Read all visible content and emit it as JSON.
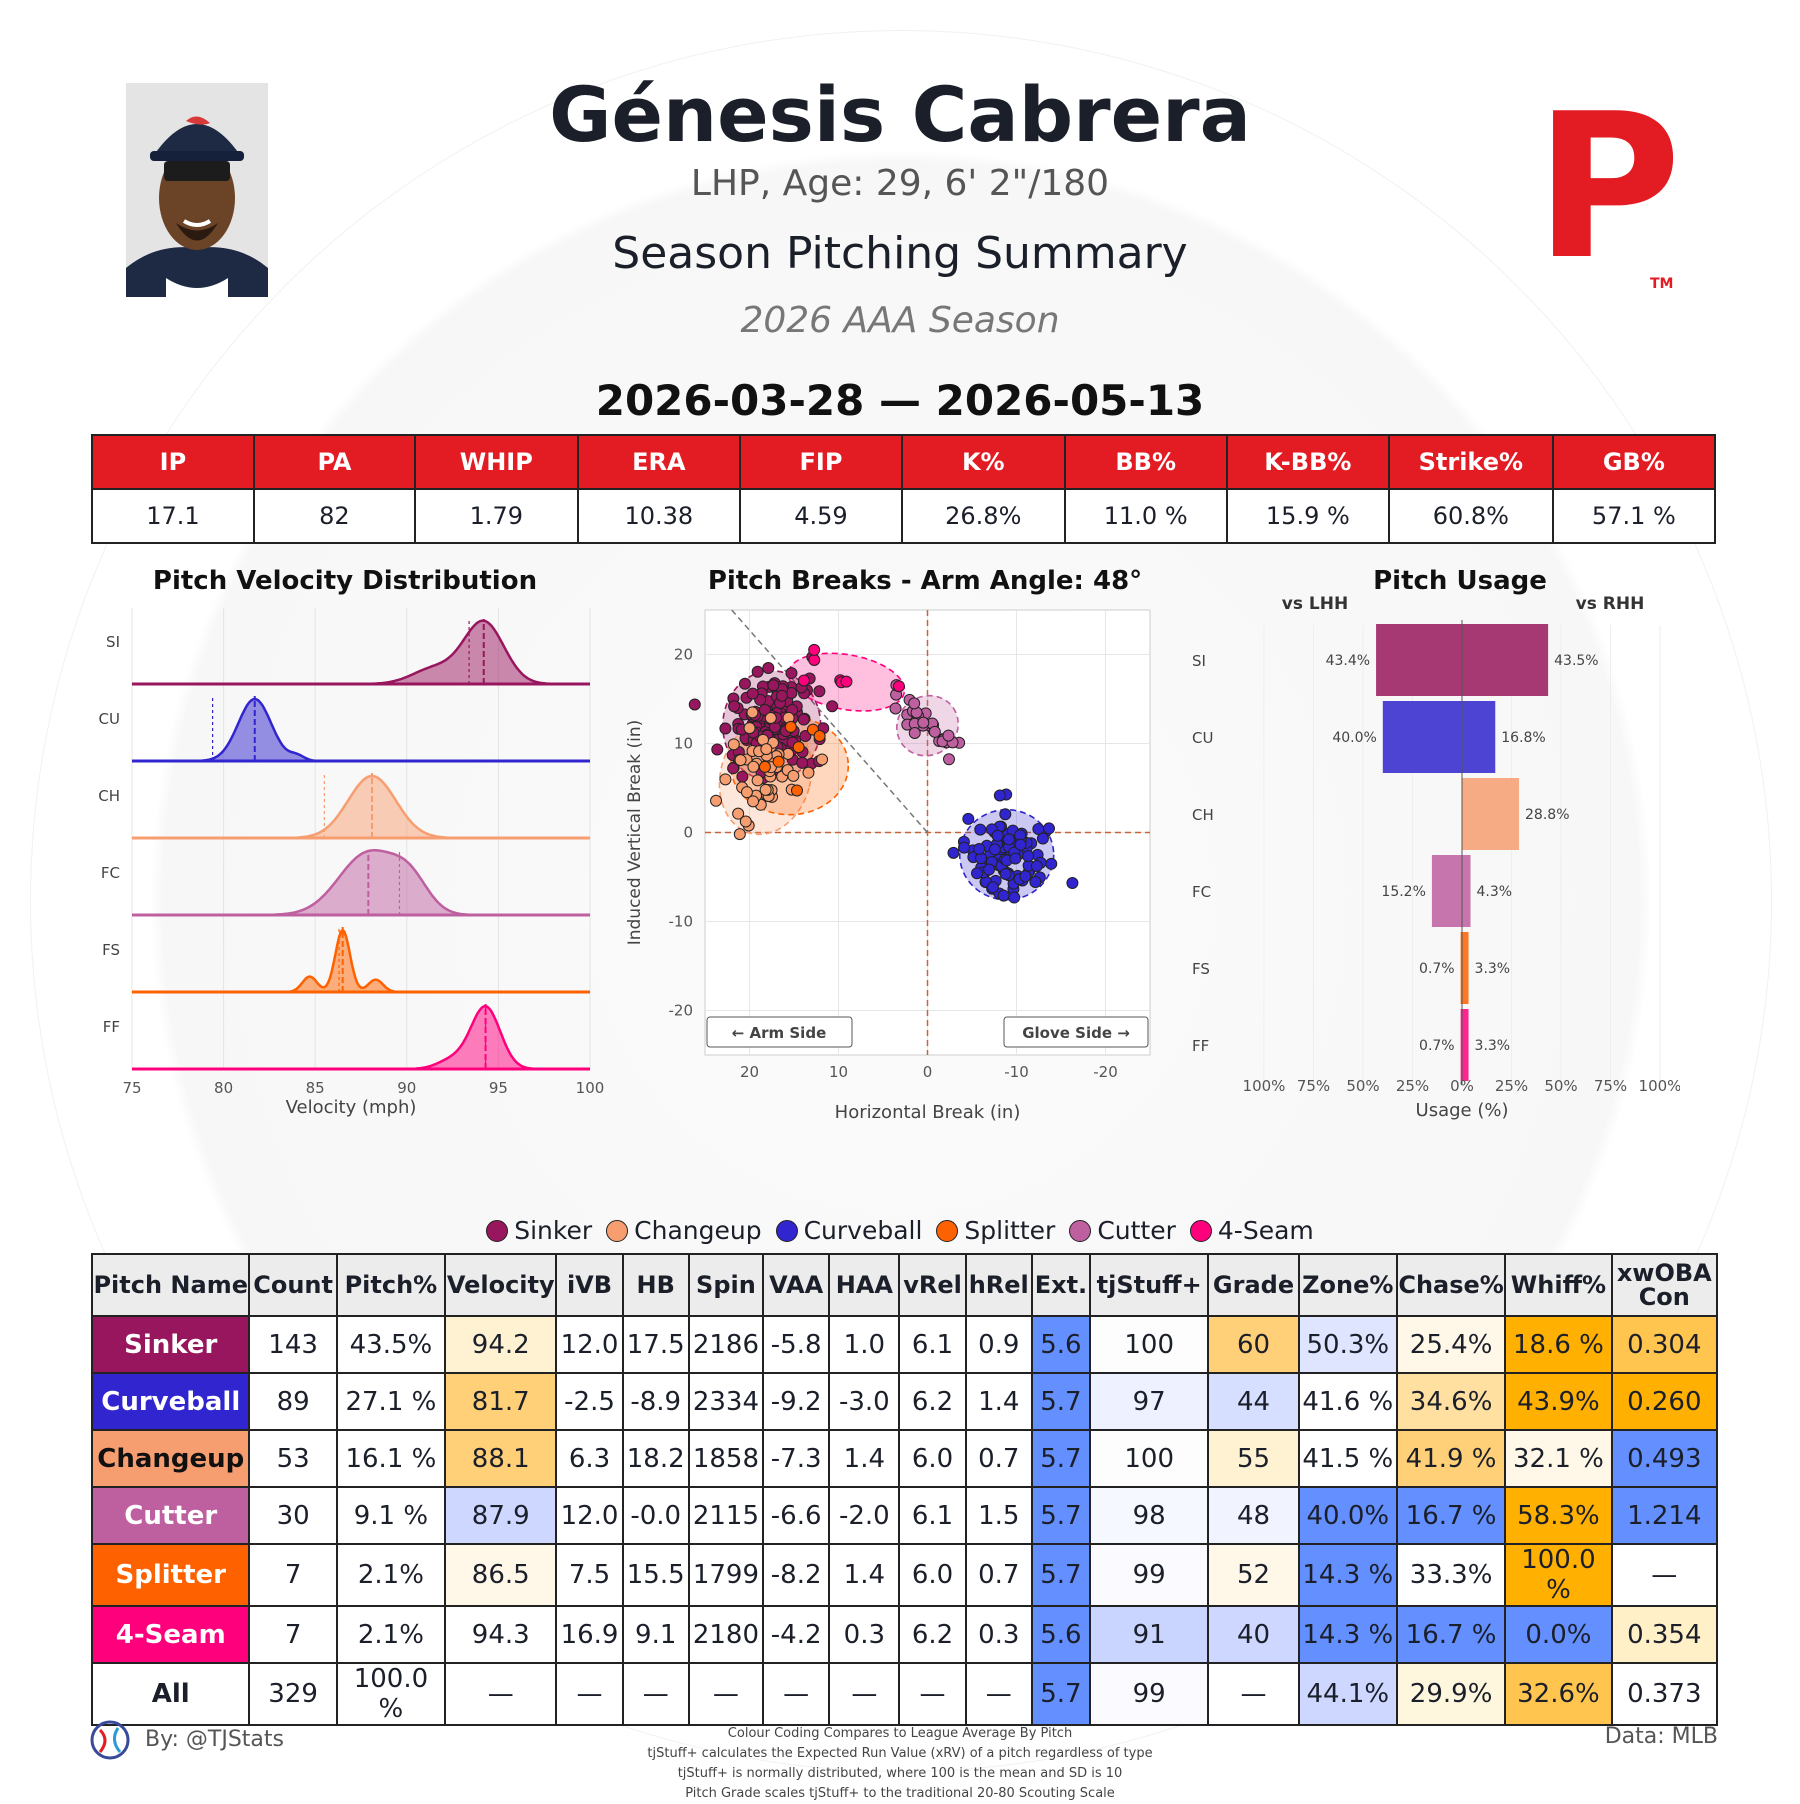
{
  "header": {
    "player_name": "Génesis Cabrera",
    "bio": "LHP, Age: 29, 6' 2\"/180",
    "report_title": "Season Pitching Summary",
    "season_label": "2026 AAA Season",
    "date_range": "2026-03-28 — 2026-05-13",
    "logo_letter": "P",
    "logo_tm": "TM"
  },
  "summary_stats": {
    "labels": [
      "IP",
      "PA",
      "WHIP",
      "ERA",
      "FIP",
      "K%",
      "BB%",
      "K-BB%",
      "Strike%",
      "GB%"
    ],
    "values": [
      "17.1",
      "82",
      "1.79",
      "10.38",
      "4.59",
      "26.8%",
      "11.0 %",
      "15.9 %",
      "60.8%",
      "57.1 %"
    ]
  },
  "colors": {
    "Sinker": "#98165d",
    "Changeup": "#f79e70",
    "Curveball": "#3025ce",
    "Splitter": "#fe6100",
    "Cutter": "#be5fa0",
    "4-Seam": "#ff007d",
    "accent_red": "#e31b23"
  },
  "chart_data": [
    {
      "type": "area",
      "title": "Pitch Velocity Distribution",
      "xlabel": "Velocity (mph)",
      "xlim": [
        75,
        100
      ],
      "xticks": [
        "75",
        "80",
        "85",
        "90",
        "95",
        "100"
      ],
      "series": [
        {
          "name": "SI",
          "pitch": "Sinker",
          "peak": 94.2,
          "league_avg": 93.4
        },
        {
          "name": "CU",
          "pitch": "Curveball",
          "peak": 81.7,
          "league_avg": 79.4
        },
        {
          "name": "CH",
          "pitch": "Changeup",
          "peak": 88.1,
          "league_avg": 85.5
        },
        {
          "name": "FC",
          "pitch": "Cutter",
          "peak": 87.9,
          "league_avg": 89.6
        },
        {
          "name": "FS",
          "pitch": "Splitter",
          "peak": 86.5,
          "league_avg": 86.3
        },
        {
          "name": "FF",
          "pitch": "4-Seam",
          "peak": 94.3,
          "league_avg": 94.3
        }
      ]
    },
    {
      "type": "scatter",
      "title": "Pitch Breaks - Arm Angle: 48°",
      "xlabel": "Horizontal Break (in)",
      "ylabel": "Induced Vertical Break (in)",
      "xlim": [
        25,
        -25
      ],
      "ylim": [
        -25,
        25
      ],
      "xticks": [
        "20",
        "10",
        "0",
        "-10",
        "-20"
      ],
      "yticks": [
        "20",
        "10",
        "0",
        "-10",
        "-20"
      ],
      "arm_side_label": "← Arm Side",
      "glove_side_label": "Glove Side →",
      "clusters": [
        {
          "pitch": "Sinker",
          "cx": 17.5,
          "cy": 12.0,
          "sx": 2.5,
          "sy": 2.8,
          "n": 143
        },
        {
          "pitch": "Curveball",
          "cx": -8.9,
          "cy": -2.5,
          "sx": 2.4,
          "sy": 2.3,
          "n": 89
        },
        {
          "pitch": "Changeup",
          "cx": 18.2,
          "cy": 6.3,
          "sx": 2.3,
          "sy": 3.0,
          "n": 53
        },
        {
          "pitch": "Cutter",
          "cx": 0.0,
          "cy": 12.0,
          "sx": 1.6,
          "sy": 1.5,
          "n": 30
        },
        {
          "pitch": "Splitter",
          "cx": 15.5,
          "cy": 7.5,
          "sx": 3.0,
          "sy": 2.5,
          "n": 7
        },
        {
          "pitch": "4-Seam",
          "cx": 9.1,
          "cy": 16.9,
          "sx": 3.0,
          "sy": 1.4,
          "n": 7
        }
      ]
    },
    {
      "type": "bar",
      "title": "Pitch Usage",
      "xlabel": "Usage (%)",
      "left_label": "vs LHH",
      "right_label": "vs RHH",
      "categories": [
        "SI",
        "CU",
        "CH",
        "FC",
        "FS",
        "FF"
      ],
      "pitches": [
        "Sinker",
        "Curveball",
        "Changeup",
        "Cutter",
        "Splitter",
        "4-Seam"
      ],
      "series": [
        {
          "name": "vs LHH",
          "values": [
            43.4,
            40.0,
            0.0,
            15.2,
            0.7,
            0.7
          ]
        },
        {
          "name": "vs RHH",
          "values": [
            43.5,
            16.8,
            28.8,
            4.3,
            3.3,
            3.3
          ]
        }
      ],
      "xticks": [
        "100%",
        "75%",
        "50%",
        "25%",
        "0%",
        "25%",
        "50%",
        "75%",
        "100%"
      ]
    }
  ],
  "legend": [
    "Sinker",
    "Changeup",
    "Curveball",
    "Splitter",
    "Cutter",
    "4-Seam"
  ],
  "pitch_table": {
    "headers": [
      "Pitch Name",
      "Count",
      "Pitch%",
      "Velocity",
      "iVB",
      "HB",
      "Spin",
      "VAA",
      "HAA",
      "vRel",
      "hRel",
      "Ext.",
      "tjStuff+",
      "Grade",
      "Zone%",
      "Chase%",
      "Whiff%",
      "xwOBA Con"
    ],
    "rows": [
      {
        "name": "Sinker",
        "cells": [
          "143",
          "43.5%",
          "94.2",
          "12.0",
          "17.5",
          "2186",
          "-5.8",
          "1.0",
          "6.1",
          "0.9",
          "5.6",
          "100",
          "60",
          "50.3%",
          "25.4%",
          "18.6 %",
          "0.304"
        ]
      },
      {
        "name": "Curveball",
        "cells": [
          "89",
          "27.1 %",
          "81.7",
          "-2.5",
          "-8.9",
          "2334",
          "-9.2",
          "-3.0",
          "6.2",
          "1.4",
          "5.7",
          "97",
          "44",
          "41.6 %",
          "34.6%",
          "43.9%",
          "0.260"
        ]
      },
      {
        "name": "Changeup",
        "cells": [
          "53",
          "16.1 %",
          "88.1",
          "6.3",
          "18.2",
          "1858",
          "-7.3",
          "1.4",
          "6.0",
          "0.7",
          "5.7",
          "100",
          "55",
          "41.5 %",
          "41.9 %",
          "32.1 %",
          "0.493"
        ]
      },
      {
        "name": "Cutter",
        "cells": [
          "30",
          "9.1 %",
          "87.9",
          "12.0",
          "-0.0",
          "2115",
          "-6.6",
          "-2.0",
          "6.1",
          "1.5",
          "5.7",
          "98",
          "48",
          "40.0%",
          "16.7 %",
          "58.3%",
          "1.214"
        ]
      },
      {
        "name": "Splitter",
        "cells": [
          "7",
          "2.1%",
          "86.5",
          "7.5",
          "15.5",
          "1799",
          "-8.2",
          "1.4",
          "6.0",
          "0.7",
          "5.7",
          "99",
          "52",
          "14.3 %",
          "33.3%",
          "100.0 %",
          "—"
        ]
      },
      {
        "name": "4-Seam",
        "cells": [
          "7",
          "2.1%",
          "94.3",
          "16.9",
          "9.1",
          "2180",
          "-4.2",
          "0.3",
          "6.2",
          "0.3",
          "5.6",
          "91",
          "40",
          "14.3 %",
          "16.7 %",
          "0.0%",
          "0.354"
        ]
      },
      {
        "name": "All",
        "cells": [
          "329",
          "100.0 %",
          "—",
          "—",
          "—",
          "—",
          "—",
          "—",
          "—",
          "—",
          "5.7",
          "99",
          "—",
          "44.1%",
          "29.9%",
          "32.6%",
          "0.373"
        ]
      }
    ],
    "cell_colors": [
      [
        "#fff",
        "#fff",
        "#fff2d3",
        "#fff",
        "#fff",
        "#fff",
        "#fff",
        "#fff",
        "#fff",
        "#fff",
        "#648fff",
        "#fdfdfd",
        "#ffd078",
        "#dfe4ff",
        "#fff8e8",
        "#ffb000",
        "#ffc54f"
      ],
      [
        "#fff",
        "#fff",
        "#ffd078",
        "#fff",
        "#fff",
        "#fff",
        "#fff",
        "#fff",
        "#fff",
        "#fff",
        "#648fff",
        "#eef1ff",
        "#d6dfff",
        "#fff",
        "#ffe0a0",
        "#ffb000",
        "#ffb000"
      ],
      [
        "#fff",
        "#fff",
        "#ffd078",
        "#fff",
        "#fff",
        "#fff",
        "#fff",
        "#fff",
        "#fff",
        "#fff",
        "#648fff",
        "#fdfdfd",
        "#fff2d3",
        "#fff",
        "#ffd078",
        "#fff8e8",
        "#648fff"
      ],
      [
        "#fff",
        "#fff",
        "#cdd7ff",
        "#fff",
        "#fff",
        "#fff",
        "#fff",
        "#fff",
        "#fff",
        "#fff",
        "#648fff",
        "#f6f8ff",
        "#f1f4ff",
        "#648fff",
        "#648fff",
        "#ffb000",
        "#648fff"
      ],
      [
        "#fff",
        "#fff",
        "#fff8e8",
        "#fff",
        "#fff",
        "#fff",
        "#fff",
        "#fff",
        "#fff",
        "#fff",
        "#648fff",
        "#fbfbff",
        "#fff8e8",
        "#648fff",
        "#fff",
        "#ffb000",
        "#fff"
      ],
      [
        "#fff",
        "#fff",
        "#fff",
        "#fff",
        "#fff",
        "#fff",
        "#fff",
        "#fff",
        "#fff",
        "#fff",
        "#648fff",
        "#c9d4ff",
        "#cdd7ff",
        "#648fff",
        "#648fff",
        "#648fff",
        "#fff0c8"
      ],
      [
        "#fff",
        "#fff",
        "#fff",
        "#fff",
        "#fff",
        "#fff",
        "#fff",
        "#fff",
        "#fff",
        "#fff",
        "#648fff",
        "#fbfbff",
        "#fff",
        "#cdd7ff",
        "#fff6de",
        "#ffc54f",
        "#fff"
      ]
    ]
  },
  "footer": {
    "credit": "By: @TJStats",
    "notes": [
      "Colour Coding Compares to League Average By Pitch",
      "tjStuff+ calculates the Expected Run Value (xRV) of a pitch regardless of type",
      "tjStuff+ is normally distributed, where 100 is the mean and SD is 10",
      "Pitch Grade scales tjStuff+ to the traditional 20-80 Scouting Scale"
    ],
    "data_source": "Data: MLB"
  }
}
